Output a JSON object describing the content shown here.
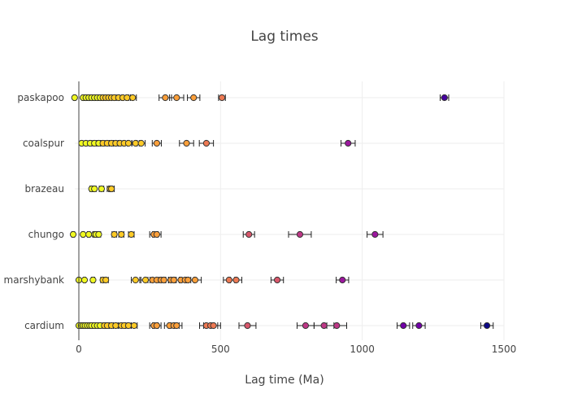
{
  "chart_data": {
    "type": "scatter",
    "title": "Lag times",
    "xlabel": "Lag time (Ma)",
    "ylabel": "",
    "xlim": [
      -30,
      1500
    ],
    "xticks": [
      0,
      500,
      1000,
      1500
    ],
    "categories": [
      "cardium",
      "marshybank",
      "chungo",
      "brazeau",
      "coalspur",
      "paskapoo"
    ],
    "color_scale": [
      "#f0f921",
      "#fdca26",
      "#fb9f3a",
      "#ed7953",
      "#d8576b",
      "#bd3786",
      "#9c179e",
      "#7201a8",
      "#46039f",
      "#0d0887"
    ],
    "series": [
      {
        "category": "cardium",
        "x": [
          0,
          8,
          15,
          22,
          30,
          38,
          45,
          55,
          65,
          75,
          90,
          100,
          115,
          130,
          150,
          160,
          175,
          195,
          265,
          275,
          320,
          335,
          345,
          450,
          465,
          475,
          595,
          800,
          865,
          910,
          1145,
          1200,
          1440
        ],
        "err": [
          3,
          3,
          3,
          3,
          3,
          4,
          4,
          4,
          5,
          5,
          6,
          6,
          7,
          8,
          9,
          9,
          10,
          11,
          15,
          15,
          18,
          19,
          19,
          24,
          25,
          25,
          30,
          30,
          35,
          35,
          22,
          22,
          22
        ]
      },
      {
        "category": "marshybank",
        "x": [
          0,
          20,
          50,
          85,
          95,
          200,
          235,
          260,
          275,
          290,
          300,
          325,
          335,
          360,
          375,
          385,
          410,
          530,
          555,
          700,
          930
        ],
        "err": [
          3,
          4,
          6,
          8,
          9,
          15,
          16,
          16,
          17,
          17,
          17,
          19,
          19,
          20,
          20,
          21,
          22,
          20,
          20,
          22,
          22
        ]
      },
      {
        "category": "chungo",
        "x": [
          -20,
          15,
          35,
          55,
          60,
          70,
          125,
          150,
          185,
          265,
          275,
          600,
          780,
          1045
        ],
        "err": [
          5,
          4,
          5,
          6,
          6,
          7,
          8,
          9,
          10,
          15,
          15,
          20,
          40,
          28
        ]
      },
      {
        "category": "brazeau",
        "x": [
          45,
          55,
          80,
          110,
          115
        ],
        "err": [
          6,
          6,
          8,
          10,
          10
        ]
      },
      {
        "category": "coalspur",
        "x": [
          10,
          25,
          40,
          55,
          70,
          85,
          100,
          115,
          130,
          145,
          160,
          175,
          200,
          220,
          275,
          380,
          450,
          950
        ],
        "err": [
          4,
          4,
          5,
          6,
          6,
          7,
          8,
          8,
          9,
          10,
          11,
          12,
          13,
          14,
          16,
          25,
          25,
          25
        ]
      },
      {
        "category": "paskapoo",
        "x": [
          -15,
          15,
          25,
          35,
          45,
          55,
          65,
          75,
          85,
          95,
          105,
          115,
          125,
          140,
          155,
          170,
          190,
          305,
          345,
          405,
          505,
          1290
        ],
        "err": [
          4,
          4,
          4,
          4,
          5,
          5,
          6,
          6,
          7,
          7,
          8,
          8,
          9,
          10,
          11,
          12,
          13,
          22,
          25,
          22,
          12,
          15
        ]
      }
    ]
  }
}
